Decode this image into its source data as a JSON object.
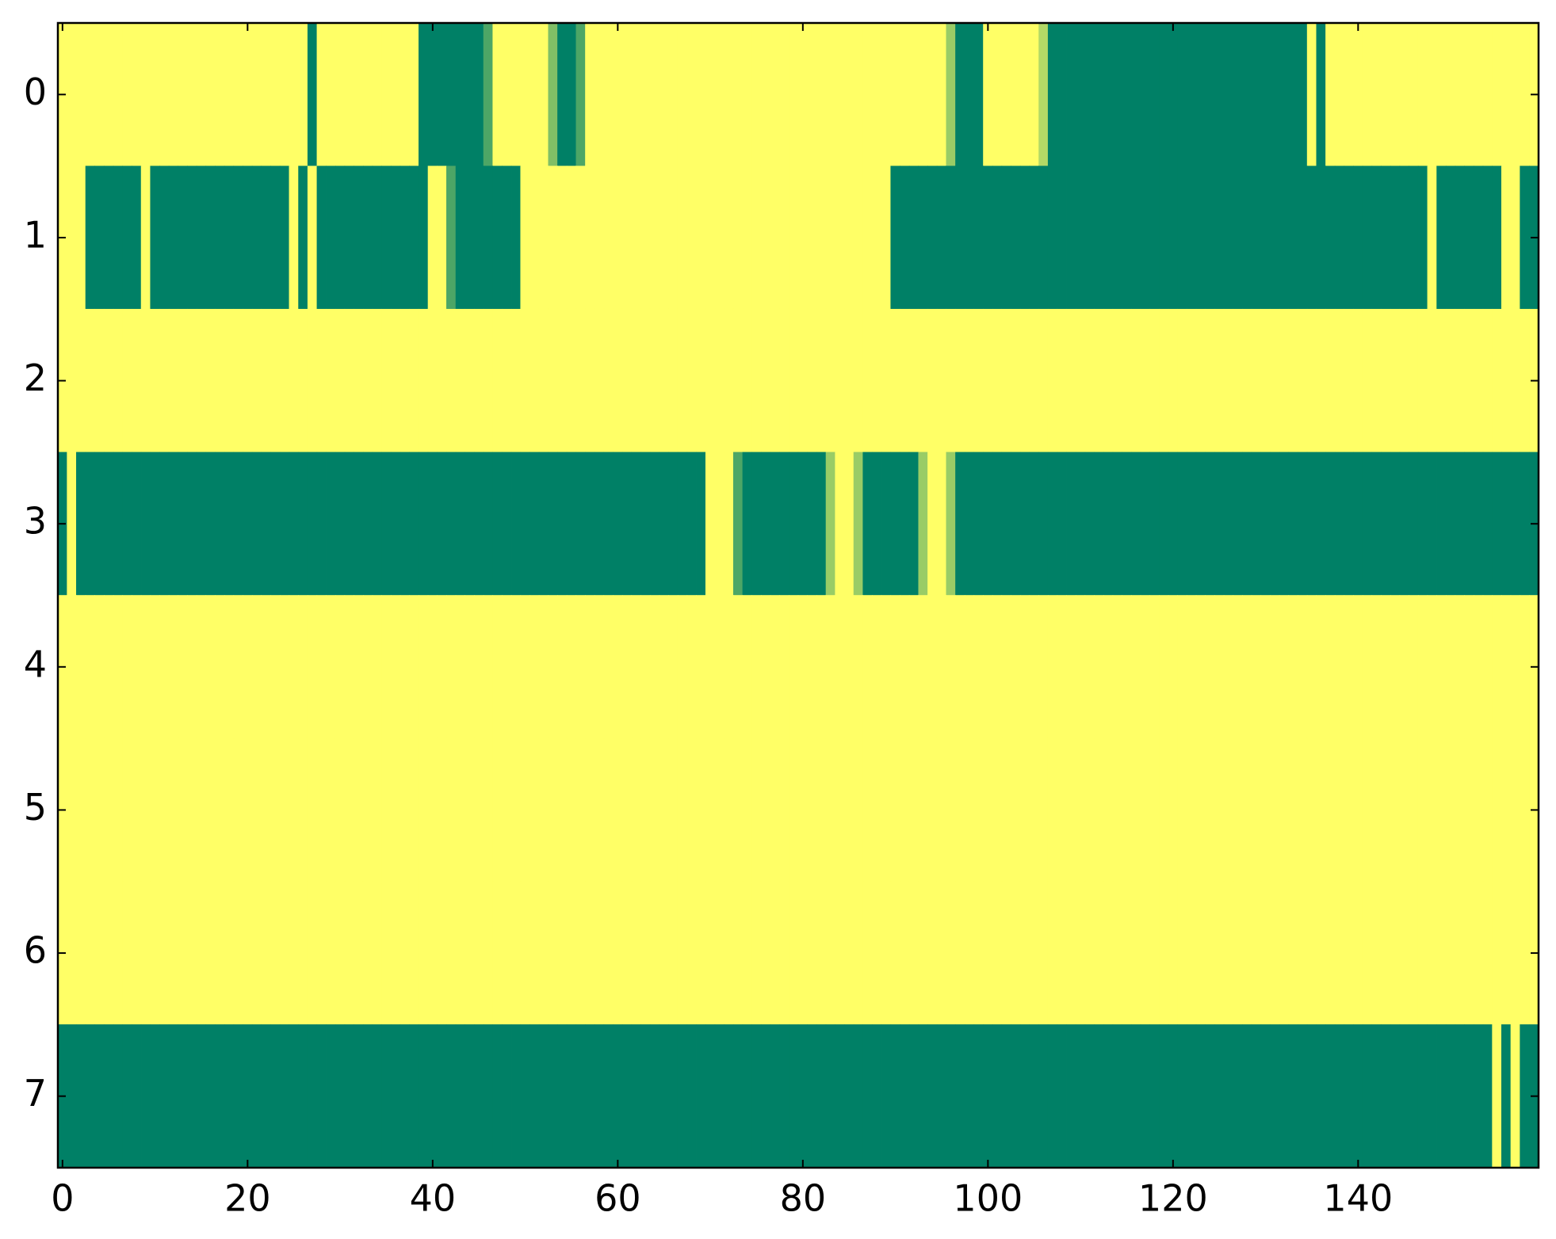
{
  "chart_data": {
    "type": "heatmap",
    "colormap": "summer",
    "xlim": [
      -0.5,
      159.5
    ],
    "ylim": [
      7.5,
      -0.5
    ],
    "xticks": [
      0,
      20,
      40,
      60,
      80,
      100,
      120,
      140
    ],
    "yticks": [
      0,
      1,
      2,
      3,
      4,
      5,
      6,
      7
    ],
    "values": [
      [
        1,
        1,
        1,
        1,
        1,
        1,
        1,
        1,
        1,
        1,
        1,
        1,
        1,
        1,
        1,
        1,
        1,
        1,
        1,
        1,
        1,
        1,
        1,
        1,
        1,
        1,
        1,
        0,
        1,
        1,
        1,
        1,
        1,
        1,
        1,
        1,
        1,
        1,
        1,
        0,
        0,
        0,
        0,
        0,
        0,
        0,
        0.3,
        1,
        1,
        1,
        1,
        1,
        1,
        0.5,
        0,
        0,
        0.3,
        1,
        1,
        1,
        1,
        1,
        1,
        1,
        1,
        1,
        1,
        1,
        1,
        1,
        1,
        1,
        1,
        1,
        1,
        1,
        1,
        1,
        1,
        1,
        1,
        1,
        1,
        1,
        1,
        1,
        1,
        1,
        1,
        1,
        1,
        1,
        1,
        1,
        1,
        1,
        0.6,
        0,
        0,
        0,
        1,
        1,
        1,
        1,
        1,
        1,
        0.7,
        0,
        0,
        0,
        0,
        0,
        0,
        0,
        0,
        0,
        0,
        0,
        0,
        0,
        0,
        0,
        0,
        0,
        0,
        0,
        0,
        0,
        0,
        0,
        0,
        0,
        0,
        0,
        0,
        1,
        0,
        1,
        1,
        1,
        1,
        1,
        1,
        1,
        1,
        1,
        1,
        1,
        1,
        1,
        1,
        1,
        1,
        1,
        1,
        1,
        1,
        1,
        1,
        1
      ],
      [
        1,
        1,
        1,
        0,
        0,
        0,
        0,
        0,
        0,
        1,
        0,
        0,
        0,
        0,
        0,
        0,
        0,
        0,
        0,
        0,
        0,
        0,
        0,
        0,
        0,
        1,
        0,
        1,
        0,
        0,
        0,
        0,
        0,
        0,
        0,
        0,
        0,
        0,
        0,
        0,
        1,
        1,
        0.3,
        0,
        0,
        0,
        0,
        0,
        0,
        0,
        1,
        1,
        1,
        1,
        1,
        1,
        1,
        1,
        1,
        1,
        1,
        1,
        1,
        1,
        1,
        1,
        1,
        1,
        1,
        1,
        1,
        1,
        1,
        1,
        1,
        1,
        1,
        1,
        1,
        1,
        1,
        1,
        1,
        1,
        1,
        1,
        1,
        1,
        1,
        1,
        0,
        0,
        0,
        0,
        0,
        0,
        0,
        0,
        0,
        0,
        0,
        0,
        0,
        0,
        0,
        0,
        0,
        0,
        0,
        0,
        0,
        0,
        0,
        0,
        0,
        0,
        0,
        0,
        0,
        0,
        0,
        0,
        0,
        0,
        0,
        0,
        0,
        0,
        0,
        0,
        0,
        0,
        0,
        0,
        0,
        0,
        0,
        0,
        0,
        0,
        0,
        0,
        0,
        0,
        0,
        0,
        0,
        0,
        1,
        0,
        0,
        0,
        0,
        0,
        0,
        0,
        1,
        1,
        0,
        0
      ],
      [
        1,
        1,
        1,
        1,
        1,
        1,
        1,
        1,
        1,
        1,
        1,
        1,
        1,
        1,
        1,
        1,
        1,
        1,
        1,
        1,
        1,
        1,
        1,
        1,
        1,
        1,
        1,
        1,
        1,
        1,
        1,
        1,
        1,
        1,
        1,
        1,
        1,
        1,
        1,
        1,
        1,
        1,
        1,
        1,
        1,
        1,
        1,
        1,
        1,
        1,
        1,
        1,
        1,
        1,
        1,
        1,
        1,
        1,
        1,
        1,
        1,
        1,
        1,
        1,
        1,
        1,
        1,
        1,
        1,
        1,
        1,
        1,
        1,
        1,
        1,
        1,
        1,
        1,
        1,
        1,
        1,
        1,
        1,
        1,
        1,
        1,
        1,
        1,
        1,
        1,
        1,
        1,
        1,
        1,
        1,
        1,
        1,
        1,
        1,
        1,
        1,
        1,
        1,
        1,
        1,
        1,
        1,
        1,
        1,
        1,
        1,
        1,
        1,
        1,
        1,
        1,
        1,
        1,
        1,
        1,
        1,
        1,
        1,
        1,
        1,
        1,
        1,
        1,
        1,
        1,
        1,
        1,
        1,
        1,
        1,
        1,
        1,
        1,
        1,
        1,
        1,
        1,
        1,
        1,
        1,
        1,
        1,
        1,
        1,
        1,
        1,
        1,
        1,
        1,
        1,
        1,
        1,
        1,
        1,
        1
      ],
      [
        0,
        1,
        0,
        0,
        0,
        0,
        0,
        0,
        0,
        0,
        0,
        0,
        0,
        0,
        0,
        0,
        0,
        0,
        0,
        0,
        0,
        0,
        0,
        0,
        0,
        0,
        0,
        0,
        0,
        0,
        0,
        0,
        0,
        0,
        0,
        0,
        0,
        0,
        0,
        0,
        0,
        0,
        0,
        0,
        0,
        0,
        0,
        0,
        0,
        0,
        0,
        0,
        0,
        0,
        0,
        0,
        0,
        0,
        0,
        0,
        0,
        0,
        0,
        0,
        0,
        0,
        0,
        0,
        0,
        0,
        1,
        1,
        1,
        0.3,
        0,
        0,
        0,
        0,
        0,
        0,
        0,
        0,
        0,
        0.6,
        1,
        1,
        0.6,
        0,
        0,
        0,
        0,
        0,
        0,
        0.6,
        1,
        1,
        0.6,
        0,
        0,
        0,
        0,
        0,
        0,
        0,
        0,
        0,
        0,
        0,
        0,
        0,
        0,
        0,
        0,
        0,
        0,
        0,
        0,
        0,
        0,
        0,
        0,
        0,
        0,
        0,
        0,
        0,
        0,
        0,
        0,
        0,
        0,
        0,
        0,
        0,
        0,
        0,
        0,
        0,
        0,
        0,
        0,
        0,
        0,
        0,
        0,
        0,
        0,
        0,
        0,
        0,
        0,
        0,
        0,
        0,
        0,
        0,
        0,
        0,
        0,
        0
      ],
      [
        1,
        1,
        1,
        1,
        1,
        1,
        1,
        1,
        1,
        1,
        1,
        1,
        1,
        1,
        1,
        1,
        1,
        1,
        1,
        1,
        1,
        1,
        1,
        1,
        1,
        1,
        1,
        1,
        1,
        1,
        1,
        1,
        1,
        1,
        1,
        1,
        1,
        1,
        1,
        1,
        1,
        1,
        1,
        1,
        1,
        1,
        1,
        1,
        1,
        1,
        1,
        1,
        1,
        1,
        1,
        1,
        1,
        1,
        1,
        1,
        1,
        1,
        1,
        1,
        1,
        1,
        1,
        1,
        1,
        1,
        1,
        1,
        1,
        1,
        1,
        1,
        1,
        1,
        1,
        1,
        1,
        1,
        1,
        1,
        1,
        1,
        1,
        1,
        1,
        1,
        1,
        1,
        1,
        1,
        1,
        1,
        1,
        1,
        1,
        1,
        1,
        1,
        1,
        1,
        1,
        1,
        1,
        1,
        1,
        1,
        1,
        1,
        1,
        1,
        1,
        1,
        1,
        1,
        1,
        1,
        1,
        1,
        1,
        1,
        1,
        1,
        1,
        1,
        1,
        1,
        1,
        1,
        1,
        1,
        1,
        1,
        1,
        1,
        1,
        1,
        1,
        1,
        1,
        1,
        1,
        1,
        1,
        1,
        1,
        1,
        1,
        1,
        1,
        1,
        1,
        1,
        1,
        1,
        1,
        1
      ],
      [
        1,
        1,
        1,
        1,
        1,
        1,
        1,
        1,
        1,
        1,
        1,
        1,
        1,
        1,
        1,
        1,
        1,
        1,
        1,
        1,
        1,
        1,
        1,
        1,
        1,
        1,
        1,
        1,
        1,
        1,
        1,
        1,
        1,
        1,
        1,
        1,
        1,
        1,
        1,
        1,
        1,
        1,
        1,
        1,
        1,
        1,
        1,
        1,
        1,
        1,
        1,
        1,
        1,
        1,
        1,
        1,
        1,
        1,
        1,
        1,
        1,
        1,
        1,
        1,
        1,
        1,
        1,
        1,
        1,
        1,
        1,
        1,
        1,
        1,
        1,
        1,
        1,
        1,
        1,
        1,
        1,
        1,
        1,
        1,
        1,
        1,
        1,
        1,
        1,
        1,
        1,
        1,
        1,
        1,
        1,
        1,
        1,
        1,
        1,
        1,
        1,
        1,
        1,
        1,
        1,
        1,
        1,
        1,
        1,
        1,
        1,
        1,
        1,
        1,
        1,
        1,
        1,
        1,
        1,
        1,
        1,
        1,
        1,
        1,
        1,
        1,
        1,
        1,
        1,
        1,
        1,
        1,
        1,
        1,
        1,
        1,
        1,
        1,
        1,
        1,
        1,
        1,
        1,
        1,
        1,
        1,
        1,
        1,
        1,
        1,
        1,
        1,
        1,
        1,
        1,
        1,
        1,
        1,
        1,
        1
      ],
      [
        1,
        1,
        1,
        1,
        1,
        1,
        1,
        1,
        1,
        1,
        1,
        1,
        1,
        1,
        1,
        1,
        1,
        1,
        1,
        1,
        1,
        1,
        1,
        1,
        1,
        1,
        1,
        1,
        1,
        1,
        1,
        1,
        1,
        1,
        1,
        1,
        1,
        1,
        1,
        1,
        1,
        1,
        1,
        1,
        1,
        1,
        1,
        1,
        1,
        1,
        1,
        1,
        1,
        1,
        1,
        1,
        1,
        1,
        1,
        1,
        1,
        1,
        1,
        1,
        1,
        1,
        1,
        1,
        1,
        1,
        1,
        1,
        1,
        1,
        1,
        1,
        1,
        1,
        1,
        1,
        1,
        1,
        1,
        1,
        1,
        1,
        1,
        1,
        1,
        1,
        1,
        1,
        1,
        1,
        1,
        1,
        1,
        1,
        1,
        1,
        1,
        1,
        1,
        1,
        1,
        1,
        1,
        1,
        1,
        1,
        1,
        1,
        1,
        1,
        1,
        1,
        1,
        1,
        1,
        1,
        1,
        1,
        1,
        1,
        1,
        1,
        1,
        1,
        1,
        1,
        1,
        1,
        1,
        1,
        1,
        1,
        1,
        1,
        1,
        1,
        1,
        1,
        1,
        1,
        1,
        1,
        1,
        1,
        1,
        1,
        1,
        1,
        1,
        1,
        1,
        1,
        1,
        1,
        1,
        1
      ],
      [
        0,
        0,
        0,
        0,
        0,
        0,
        0,
        0,
        0,
        0,
        0,
        0,
        0,
        0,
        0,
        0,
        0,
        0,
        0,
        0,
        0,
        0,
        0,
        0,
        0,
        0,
        0,
        0,
        0,
        0,
        0,
        0,
        0,
        0,
        0,
        0,
        0,
        0,
        0,
        0,
        0,
        0,
        0,
        0,
        0,
        0,
        0,
        0,
        0,
        0,
        0,
        0,
        0,
        0,
        0,
        0,
        0,
        0,
        0,
        0,
        0,
        0,
        0,
        0,
        0,
        0,
        0,
        0,
        0,
        0,
        0,
        0,
        0,
        0,
        0,
        0,
        0,
        0,
        0,
        0,
        0,
        0,
        0,
        0,
        0,
        0,
        0,
        0,
        0,
        0,
        0,
        0,
        0,
        0,
        0,
        0,
        0,
        0,
        0,
        0,
        0,
        0,
        0,
        0,
        0,
        0,
        0,
        0,
        0,
        0,
        0,
        0,
        0,
        0,
        0,
        0,
        0,
        0,
        0,
        0,
        0,
        0,
        0,
        0,
        0,
        0,
        0,
        0,
        0,
        0,
        0,
        0,
        0,
        0,
        0,
        0,
        0,
        0,
        0,
        0,
        0,
        0,
        0,
        0,
        0,
        0,
        0,
        0,
        0,
        0,
        0,
        0,
        0,
        0,
        0,
        1,
        0,
        1,
        0,
        0
      ]
    ]
  }
}
